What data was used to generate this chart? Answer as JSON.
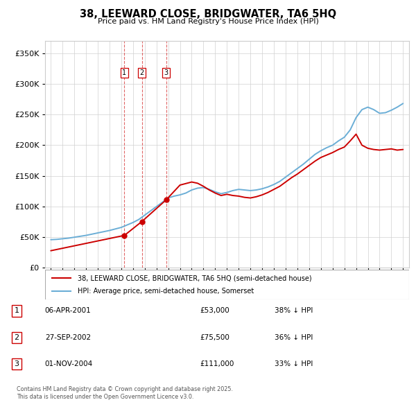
{
  "title": "38, LEEWARD CLOSE, BRIDGWATER, TA6 5HQ",
  "subtitle": "Price paid vs. HM Land Registry's House Price Index (HPI)",
  "hpi_label": "HPI: Average price, semi-detached house, Somerset",
  "property_label": "38, LEEWARD CLOSE, BRIDGWATER, TA6 5HQ (semi-detached house)",
  "footer_line1": "Contains HM Land Registry data © Crown copyright and database right 2025.",
  "footer_line2": "This data is licensed under the Open Government Licence v3.0.",
  "transactions": [
    {
      "num": "1",
      "date": "06-APR-2001",
      "price": "£53,000",
      "pct": "38% ↓ HPI",
      "year": 2001.27,
      "price_val": 53000
    },
    {
      "num": "2",
      "date": "27-SEP-2002",
      "price": "£75,500",
      "pct": "36% ↓ HPI",
      "year": 2002.75,
      "price_val": 75500
    },
    {
      "num": "3",
      "date": "01-NOV-2004",
      "price": "£111,000",
      "pct": "33% ↓ HPI",
      "year": 2004.83,
      "price_val": 111000
    }
  ],
  "hpi_color": "#6baed6",
  "property_color": "#cc0000",
  "vline_color": "#cc0000",
  "ylim": [
    0,
    370000
  ],
  "yticks": [
    0,
    50000,
    100000,
    150000,
    200000,
    250000,
    300000,
    350000
  ],
  "xlim": [
    1994.5,
    2025.5
  ],
  "xticks": [
    1995,
    1996,
    1997,
    1998,
    1999,
    2000,
    2001,
    2002,
    2003,
    2004,
    2005,
    2006,
    2007,
    2008,
    2009,
    2010,
    2011,
    2012,
    2013,
    2014,
    2015,
    2016,
    2017,
    2018,
    2019,
    2020,
    2021,
    2022,
    2023,
    2024,
    2025
  ],
  "hpi_years": [
    1995.0,
    1995.5,
    1996.0,
    1996.5,
    1997.0,
    1997.5,
    1998.0,
    1998.5,
    1999.0,
    1999.5,
    2000.0,
    2000.5,
    2001.0,
    2001.5,
    2002.0,
    2002.5,
    2003.0,
    2003.5,
    2004.0,
    2004.5,
    2005.0,
    2005.5,
    2006.0,
    2006.5,
    2007.0,
    2007.5,
    2008.0,
    2008.5,
    2009.0,
    2009.5,
    2010.0,
    2010.5,
    2011.0,
    2011.5,
    2012.0,
    2012.5,
    2013.0,
    2013.5,
    2014.0,
    2014.5,
    2015.0,
    2015.5,
    2016.0,
    2016.5,
    2017.0,
    2017.5,
    2018.0,
    2018.5,
    2019.0,
    2019.5,
    2020.0,
    2020.5,
    2021.0,
    2021.5,
    2022.0,
    2022.5,
    2023.0,
    2023.5,
    2024.0,
    2024.5,
    2025.0
  ],
  "hpi_values": [
    46000,
    46500,
    47500,
    48500,
    50000,
    51500,
    53000,
    55000,
    57000,
    59000,
    61000,
    63500,
    66000,
    70000,
    74000,
    79000,
    86000,
    93000,
    100000,
    107000,
    114000,
    117000,
    119000,
    122000,
    127000,
    130000,
    131000,
    128000,
    124000,
    121000,
    123000,
    126000,
    128000,
    127000,
    126000,
    127000,
    129000,
    132000,
    136000,
    141000,
    148000,
    155000,
    162000,
    169000,
    177000,
    185000,
    191000,
    196000,
    200000,
    207000,
    213000,
    225000,
    245000,
    258000,
    262000,
    258000,
    252000,
    253000,
    257000,
    262000,
    268000
  ],
  "prop_years": [
    1995.0,
    2001.27,
    2002.75,
    2004.83,
    2006.0,
    2007.0,
    2007.5,
    2008.0,
    2008.5,
    2009.0,
    2009.5,
    2010.0,
    2010.5,
    2011.0,
    2011.5,
    2012.0,
    2012.5,
    2013.0,
    2013.5,
    2014.0,
    2014.5,
    2015.0,
    2015.5,
    2016.0,
    2016.5,
    2017.0,
    2017.5,
    2018.0,
    2018.5,
    2019.0,
    2019.5,
    2020.0,
    2020.5,
    2021.0,
    2021.5,
    2022.0,
    2022.5,
    2023.0,
    2023.5,
    2024.0,
    2024.5,
    2025.0
  ],
  "prop_values": [
    28000,
    53000,
    75500,
    111000,
    135000,
    140000,
    138000,
    133000,
    127000,
    122000,
    118000,
    120000,
    118000,
    117000,
    115000,
    114000,
    116000,
    119000,
    123000,
    128000,
    133000,
    140000,
    147000,
    153000,
    160000,
    167000,
    174000,
    180000,
    184000,
    188000,
    193000,
    197000,
    207000,
    218000,
    200000,
    195000,
    193000,
    192000,
    193000,
    194000,
    192000,
    193000
  ]
}
